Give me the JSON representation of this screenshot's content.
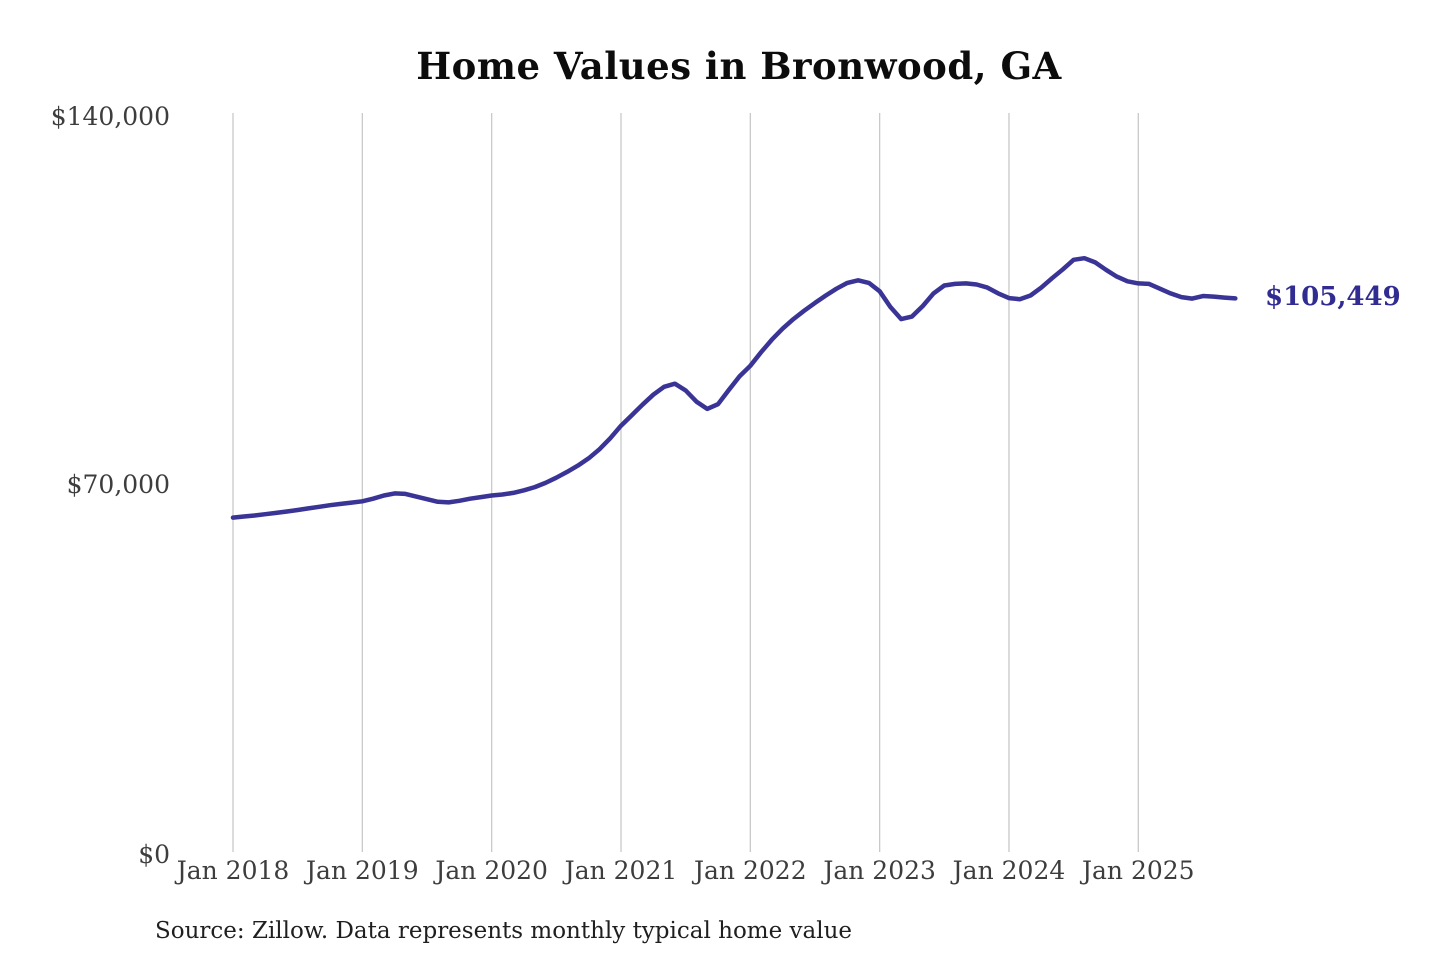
{
  "title": "Home Values in Bronwood, GA",
  "source_note": "Source: Zillow. Data represents monthly typical home value",
  "colors": {
    "line": "#3a3496",
    "end_label": "#312c91",
    "grid": "#c9c9c9",
    "tick_label": "#3d3d3d",
    "title": "#0c0c0c",
    "background": "#ffffff"
  },
  "chart_data": {
    "type": "line",
    "title": "Home Values in Bronwood, GA",
    "series_name": "Typical home value",
    "frequency": "monthly",
    "xlabel": "",
    "ylabel": "",
    "ylim": [
      0,
      140000
    ],
    "y_tick_labels": [
      "$140,000",
      "$70,000",
      "$0"
    ],
    "y_tick_values": [
      140000,
      70000,
      0
    ],
    "x_tick_labels": [
      "Jan 2018",
      "Jan 2019",
      "Jan 2020",
      "Jan 2021",
      "Jan 2022",
      "Jan 2023",
      "Jan 2024",
      "Jan 2025"
    ],
    "grid": "vertical-only",
    "legend": "none",
    "end_label": "$105,449",
    "latest_value": 105449,
    "x": [
      "2018-01",
      "2018-02",
      "2018-03",
      "2018-04",
      "2018-05",
      "2018-06",
      "2018-07",
      "2018-08",
      "2018-09",
      "2018-10",
      "2018-11",
      "2018-12",
      "2019-01",
      "2019-02",
      "2019-03",
      "2019-04",
      "2019-05",
      "2019-06",
      "2019-07",
      "2019-08",
      "2019-09",
      "2019-10",
      "2019-11",
      "2019-12",
      "2020-01",
      "2020-02",
      "2020-03",
      "2020-04",
      "2020-05",
      "2020-06",
      "2020-07",
      "2020-08",
      "2020-09",
      "2020-10",
      "2020-11",
      "2020-12",
      "2021-01",
      "2021-02",
      "2021-03",
      "2021-04",
      "2021-05",
      "2021-06",
      "2021-07",
      "2021-08",
      "2021-09",
      "2021-10",
      "2021-11",
      "2021-12",
      "2022-01",
      "2022-02",
      "2022-03",
      "2022-04",
      "2022-05",
      "2022-06",
      "2022-07",
      "2022-08",
      "2022-09",
      "2022-10",
      "2022-11",
      "2022-12",
      "2023-01",
      "2023-02",
      "2023-03",
      "2023-04",
      "2023-05",
      "2023-06",
      "2023-07",
      "2023-08",
      "2023-09",
      "2023-10",
      "2023-11",
      "2023-12",
      "2024-01",
      "2024-02",
      "2024-03",
      "2024-04",
      "2024-05",
      "2024-06",
      "2024-07",
      "2024-08",
      "2024-09",
      "2024-10",
      "2024-11",
      "2024-12",
      "2025-01",
      "2025-02",
      "2025-03",
      "2025-04",
      "2025-05",
      "2025-06",
      "2025-07",
      "2025-08",
      "2025-09",
      "2025-10"
    ],
    "values": [
      63700,
      63900,
      64100,
      64350,
      64600,
      64850,
      65150,
      65450,
      65750,
      66050,
      66300,
      66550,
      66800,
      67300,
      67900,
      68300,
      68200,
      67700,
      67200,
      66700,
      66600,
      66900,
      67300,
      67600,
      67900,
      68100,
      68400,
      68900,
      69500,
      70300,
      71300,
      72400,
      73600,
      75000,
      76700,
      78800,
      81200,
      83200,
      85200,
      87100,
      88600,
      89200,
      87900,
      85800,
      84400,
      85300,
      88000,
      90600,
      92600,
      95200,
      97600,
      99700,
      101500,
      103100,
      104600,
      106000,
      107300,
      108400,
      108900,
      108400,
      106800,
      103800,
      101500,
      102000,
      104000,
      106400,
      107900,
      108200,
      108300,
      108100,
      107500,
      106400,
      105500,
      105300,
      106000,
      107500,
      109300,
      111000,
      112800,
      113100,
      112300,
      110900,
      109600,
      108700,
      108300,
      108200,
      107300,
      106400,
      105700,
      105400,
      105900,
      105800,
      105600,
      105449
    ]
  }
}
